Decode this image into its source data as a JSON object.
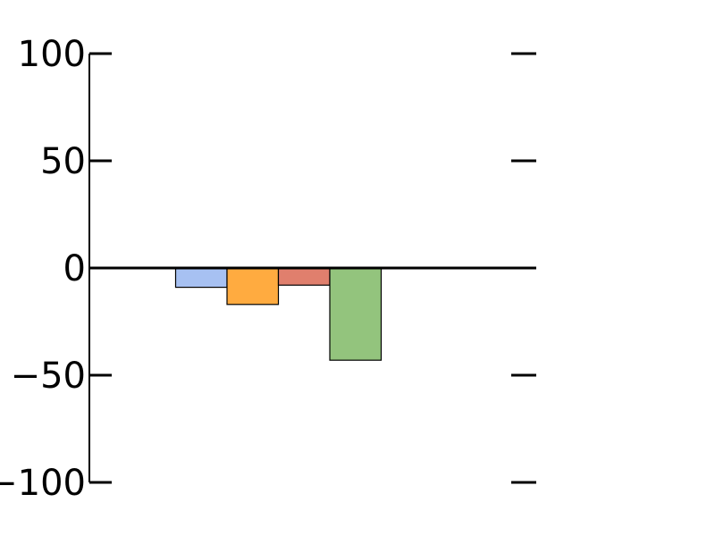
{
  "chart_data": {
    "type": "bar",
    "title": "",
    "xlabel": "",
    "ylabel": "",
    "ylim": [
      -100,
      100
    ],
    "yticks": [
      100,
      50,
      0,
      -50,
      -100
    ],
    "ytick_labels": [
      "100",
      "50",
      "0",
      "−50",
      "−100"
    ],
    "grid": false,
    "legend": "none",
    "categories": [
      "",
      "",
      "",
      ""
    ],
    "values": [
      -9,
      -17,
      -8,
      -43
    ],
    "colors": [
      "#a7c1f2",
      "#ffab40",
      "#e07f6d",
      "#93c47d"
    ]
  }
}
